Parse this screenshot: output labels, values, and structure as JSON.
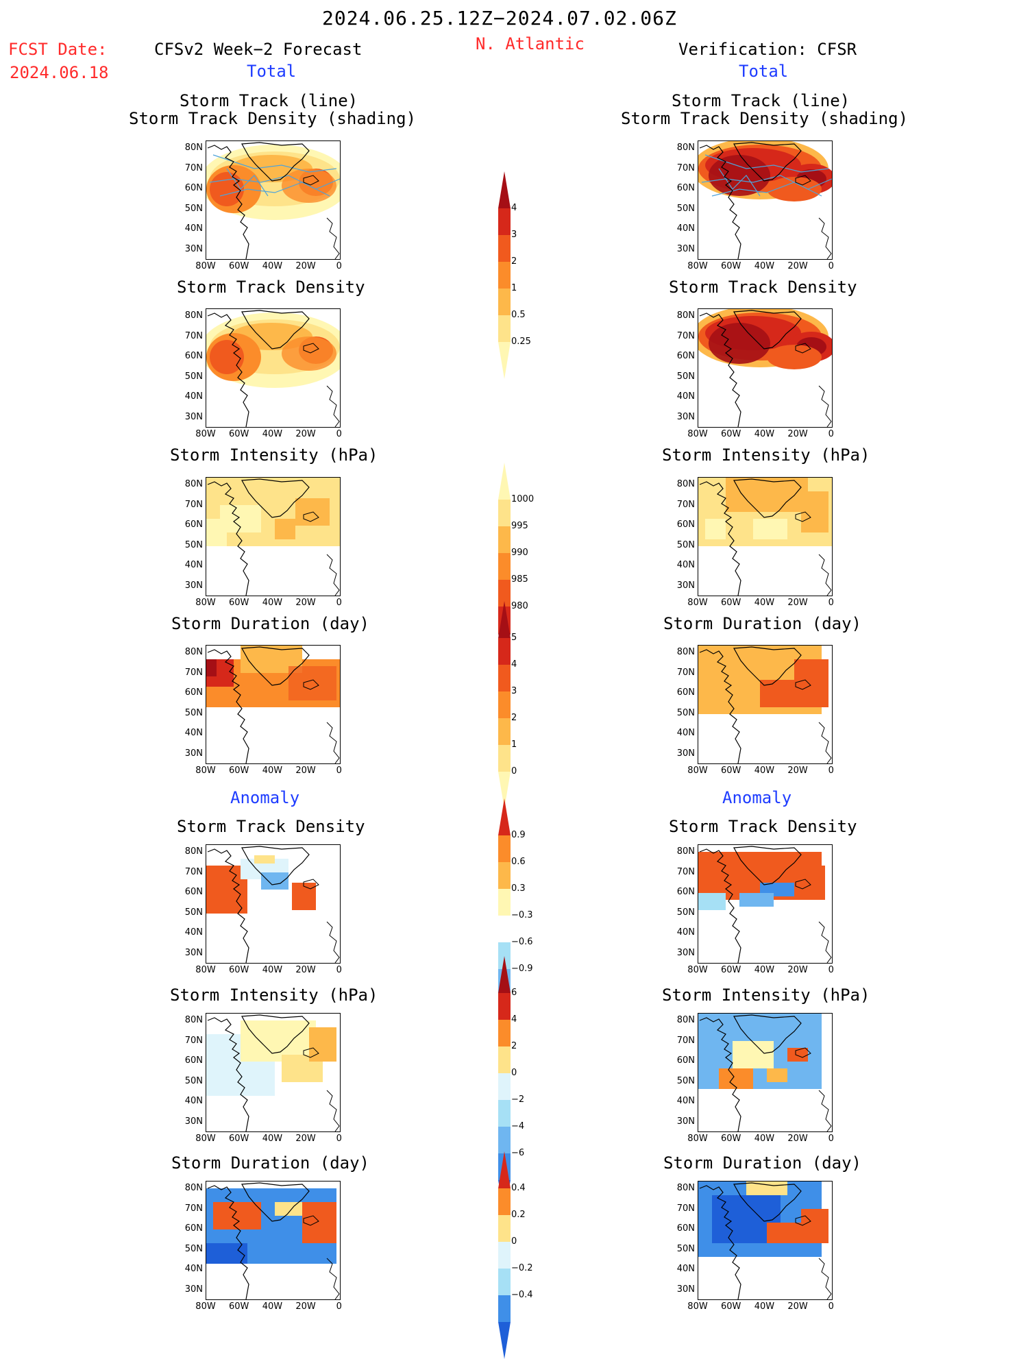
{
  "header": {
    "date_range": "2024.06.25.12Z−2024.07.02.06Z",
    "fcst_label": "FCST Date:",
    "fcst_date": "2024.06.18",
    "region": "N. Atlantic",
    "left_title": "CFSv2 Week−2 Forecast",
    "right_title": "Verification: CFSR",
    "total_left": "Total",
    "total_right": "Total",
    "anomaly_left": "Anomaly",
    "anomaly_right": "Anomaly"
  },
  "panel_titles": {
    "track_line": "Storm Track (line)",
    "track_shading": "Storm Track Density (shading)",
    "density": "Storm Track Density",
    "intensity": "Storm Intensity (hPa)",
    "duration": "Storm Duration (day)"
  },
  "axes": {
    "lat_labels": [
      "80N",
      "70N",
      "60N",
      "50N",
      "40N",
      "30N"
    ],
    "lon_labels": [
      "80W",
      "60W",
      "40W",
      "20W",
      "0"
    ]
  },
  "colorbars": {
    "density_total": [
      "4",
      "3",
      "2",
      "1",
      "0.5",
      "0.25"
    ],
    "intensity_total": [
      "1000",
      "995",
      "990",
      "985",
      "980"
    ],
    "duration_total": [
      "5",
      "4",
      "3",
      "2",
      "1",
      "0"
    ],
    "density_anom": [
      "0.9",
      "0.6",
      "0.3",
      "−0.3",
      "−0.6",
      "−0.9"
    ],
    "intensity_anom": [
      "6",
      "4",
      "2",
      "0",
      "−2",
      "−4",
      "−6"
    ],
    "duration_anom": [
      "0.4",
      "0.2",
      "0",
      "−0.2",
      "−0.4"
    ]
  },
  "colors": {
    "warm": [
      "#fff7b3",
      "#fee38a",
      "#fdb84a",
      "#fb8c2a",
      "#f05a1e",
      "#d6281a",
      "#a50f15"
    ],
    "cool": [
      "#dff4fb",
      "#a6e0f5",
      "#6fb6f0",
      "#3f8fe8",
      "#1e5fd8"
    ],
    "track_line": "#4fa3d9"
  }
}
